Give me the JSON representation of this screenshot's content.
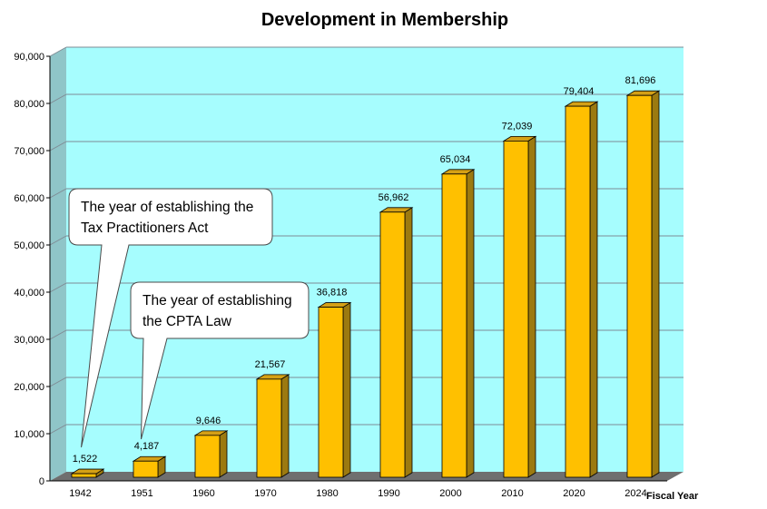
{
  "chart_data": {
    "type": "bar",
    "title": "Development in Membership",
    "xlabel": "Fiscal Year",
    "ylabel": "",
    "ylim": [
      0,
      90000
    ],
    "yticks": [
      "0",
      "10,000",
      "20,000",
      "30,000",
      "40,000",
      "50,000",
      "60,000",
      "70,000",
      "80,000",
      "90,000"
    ],
    "categories": [
      "1942",
      "1951",
      "1960",
      "1970",
      "1980",
      "1990",
      "2000",
      "2010",
      "2020",
      "2024"
    ],
    "values": [
      1522,
      4187,
      9646,
      21567,
      36818,
      56962,
      65034,
      72039,
      79404,
      81696
    ],
    "value_labels": [
      "1,522",
      "4,187",
      "9,646",
      "21,567",
      "36,818",
      "56,962",
      "65,034",
      "72,039",
      "79,404",
      "81,696"
    ],
    "grid": true,
    "colors": {
      "plot_background": "#a6fdfe",
      "bar_front": "#ffc000",
      "bar_side": "#9c7a10",
      "bar_top": "#d4a016",
      "gridline": "#7f8c95",
      "wall_side": "#8fc5c8",
      "floor": "#6f6f6f"
    },
    "annotations": [
      {
        "lines": [
          "The year of establishing the",
          "Tax Practitioners Act"
        ],
        "points_to": "1942"
      },
      {
        "lines": [
          "The year of establishing",
          "the CPTA Law"
        ],
        "points_to": "1951"
      }
    ]
  }
}
